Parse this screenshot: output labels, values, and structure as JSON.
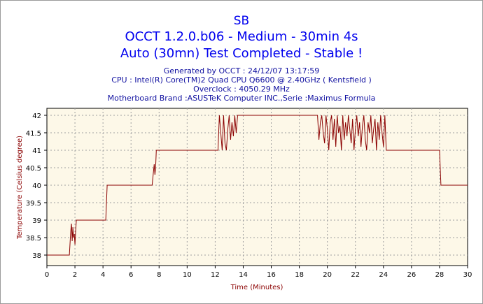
{
  "header": {
    "name": "SB",
    "test": "OCCT 1.2.0.b06 - Medium - 30min 4s",
    "status": "Auto (30mn) Test Completed - Stable !"
  },
  "info": {
    "generated": "Generated by OCCT : 24/12/07 13:17:59",
    "cpu": "CPU : Intel(R) Core(TM)2 Quad CPU Q6600 @ 2.40GHz ( Kentsfield )",
    "overclock": "Overclock : 4050.29 MHz",
    "motherboard": "Motherboard Brand :ASUSTeK Computer INC.,Serie :Maximus Formula"
  },
  "chart_data": {
    "type": "line",
    "xlabel": "Time (Minutes)",
    "ylabel": "Temperature (Celsius degree)",
    "xlim": [
      0,
      30
    ],
    "ylim": [
      37.7,
      42.2
    ],
    "xticks": [
      0,
      2,
      4,
      6,
      8,
      10,
      12,
      14,
      16,
      18,
      20,
      22,
      24,
      26,
      28,
      30
    ],
    "yticks": [
      38,
      38.5,
      39,
      39.5,
      40,
      40.5,
      41,
      41.5,
      42
    ],
    "grid": true,
    "line_color": "#8b0000",
    "plot_background": "#fdf8e8",
    "series": [
      {
        "x": [
          0,
          1.6,
          1.7,
          1.75,
          1.8,
          1.85,
          1.9,
          1.95,
          2.0,
          2.05,
          2.1,
          2.2,
          4.2,
          4.3,
          7.5,
          7.6,
          7.65,
          7.7,
          7.75,
          7.8,
          7.9,
          12.2,
          12.3,
          12.4,
          12.5,
          12.6,
          12.7,
          12.8,
          12.9,
          13.0,
          13.1,
          13.2,
          13.3,
          13.4,
          13.5,
          13.6,
          19.3,
          19.4,
          19.5,
          19.6,
          19.7,
          19.8,
          19.9,
          20.0,
          20.1,
          20.2,
          20.3,
          20.4,
          20.5,
          20.6,
          20.7,
          20.8,
          20.9,
          21.0,
          21.1,
          21.2,
          21.3,
          21.4,
          21.5,
          21.6,
          21.7,
          21.8,
          21.9,
          22.0,
          22.1,
          22.2,
          22.3,
          22.4,
          22.5,
          22.6,
          22.7,
          22.8,
          22.9,
          23.0,
          23.1,
          23.2,
          23.3,
          23.4,
          23.5,
          23.6,
          23.7,
          23.8,
          23.9,
          24.0,
          24.1,
          24.2,
          28.0,
          28.1,
          30
        ],
        "y": [
          38,
          38,
          38.7,
          38.9,
          38.4,
          38.8,
          38.5,
          38.6,
          38.3,
          38.7,
          39,
          39,
          39,
          40,
          40,
          40.4,
          40.6,
          40.3,
          40.5,
          41,
          41,
          41,
          42,
          41.5,
          41,
          42,
          41.2,
          41,
          41.6,
          42,
          41.3,
          41.8,
          41.4,
          42,
          41.5,
          42,
          42,
          41.3,
          41.8,
          42,
          41.5,
          41.2,
          42,
          41.6,
          41,
          41.8,
          42,
          41.3,
          41.9,
          41.1,
          42,
          41.5,
          41.7,
          41,
          42,
          41.3,
          41.8,
          41.4,
          42,
          41.6,
          41.2,
          41.9,
          41,
          41.6,
          42,
          41.4,
          41.8,
          41.1,
          41.7,
          42,
          41.3,
          41,
          41.8,
          41.5,
          42,
          41.2,
          41.6,
          41.9,
          41,
          41.8,
          41.3,
          42,
          41.5,
          41.1,
          42,
          41,
          41,
          40,
          40
        ]
      }
    ]
  }
}
